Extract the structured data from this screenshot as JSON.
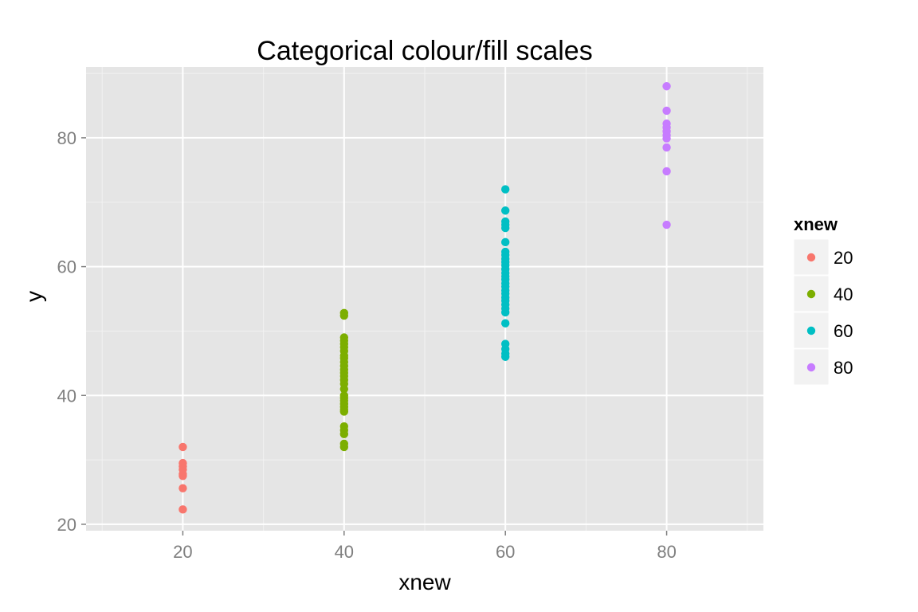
{
  "chart_data": {
    "type": "scatter",
    "title": "Categorical colour/fill scales",
    "xlabel": "xnew",
    "ylabel": "y",
    "xlim": [
      8,
      92
    ],
    "ylim": [
      19,
      91
    ],
    "x_ticks": [
      20,
      40,
      60,
      80
    ],
    "y_ticks": [
      20,
      40,
      60,
      80
    ],
    "grid": true,
    "legend": {
      "title": "xnew",
      "placement": "right"
    },
    "series": [
      {
        "name": "20",
        "color": "#F8766D",
        "x": 20,
        "y": [
          32.0,
          29.5,
          29.0,
          28.5,
          27.8,
          27.5,
          25.6,
          22.3
        ]
      },
      {
        "name": "40",
        "color": "#7CAE00",
        "x": 40,
        "y": [
          52.8,
          52.4,
          49.0,
          48.5,
          48.0,
          47.5,
          46.9,
          46.2,
          45.8,
          45.2,
          44.6,
          44.0,
          43.5,
          43.0,
          42.4,
          41.8,
          41.0,
          40.0,
          39.6,
          39.2,
          38.7,
          38.2,
          37.8,
          37.5,
          35.2,
          34.6,
          34.0,
          32.5,
          32.0
        ]
      },
      {
        "name": "60",
        "color": "#00BFC4",
        "x": 60,
        "y": [
          72.0,
          68.7,
          67.0,
          66.5,
          66.0,
          63.8,
          62.3,
          61.8,
          61.2,
          60.7,
          60.2,
          59.6,
          59.0,
          58.5,
          58.0,
          57.4,
          56.9,
          56.3,
          55.8,
          55.2,
          54.7,
          54.1,
          53.5,
          52.9,
          51.2,
          48.0,
          47.2,
          46.5,
          46.0
        ]
      },
      {
        "name": "80",
        "color": "#C77CFF",
        "x": 80,
        "y": [
          88.0,
          84.2,
          82.2,
          81.6,
          81.0,
          80.4,
          79.9,
          78.5,
          74.8,
          66.5
        ]
      }
    ]
  }
}
